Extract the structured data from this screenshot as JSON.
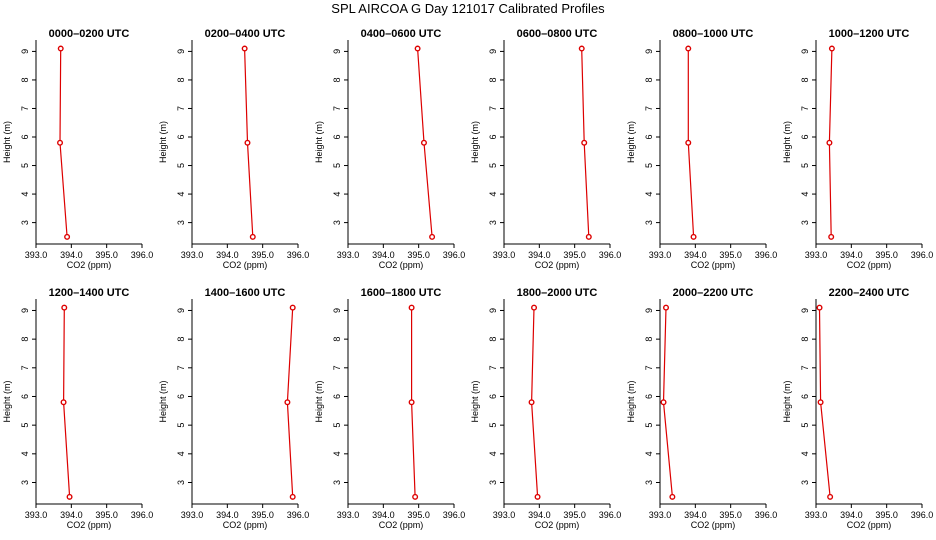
{
  "figure": {
    "title": "SPL AIRCOA G  Day 121017  Calibrated Profiles"
  },
  "chart_data": [
    {
      "type": "line",
      "title": "0000–0200 UTC",
      "xlabel": "CO2 (ppm)",
      "ylabel": "Height (m)",
      "xlim": [
        393,
        396
      ],
      "ylim": [
        2.25,
        9.4
      ],
      "xticks": [
        "393.0",
        "394.0",
        "395.0",
        "396.0"
      ],
      "yticks": [
        "3",
        "4",
        "5",
        "6",
        "7",
        "8",
        "9"
      ],
      "series": [
        {
          "color": "#dd0000",
          "x": [
            393.7,
            393.68,
            393.88
          ],
          "y": [
            9.1,
            5.8,
            2.5
          ]
        }
      ]
    },
    {
      "type": "line",
      "title": "0200–0400 UTC",
      "xlabel": "CO2 (ppm)",
      "ylabel": "Height (m)",
      "xlim": [
        393,
        396
      ],
      "ylim": [
        2.25,
        9.4
      ],
      "xticks": [
        "393.0",
        "394.0",
        "395.0",
        "396.0"
      ],
      "yticks": [
        "3",
        "4",
        "5",
        "6",
        "7",
        "8",
        "9"
      ],
      "series": [
        {
          "color": "#dd0000",
          "x": [
            394.49,
            394.57,
            394.72
          ],
          "y": [
            9.1,
            5.8,
            2.5
          ]
        }
      ]
    },
    {
      "type": "line",
      "title": "0400–0600 UTC",
      "xlabel": "CO2 (ppm)",
      "ylabel": "Height (m)",
      "xlim": [
        393,
        396
      ],
      "ylim": [
        2.25,
        9.4
      ],
      "xticks": [
        "393.0",
        "394.0",
        "395.0",
        "396.0"
      ],
      "yticks": [
        "3",
        "4",
        "5",
        "6",
        "7",
        "8",
        "9"
      ],
      "series": [
        {
          "color": "#dd0000",
          "x": [
            394.97,
            395.15,
            395.38
          ],
          "y": [
            9.1,
            5.8,
            2.5
          ]
        }
      ]
    },
    {
      "type": "line",
      "title": "0600–0800 UTC",
      "xlabel": "CO2 (ppm)",
      "ylabel": "Height (m)",
      "xlim": [
        393,
        396
      ],
      "ylim": [
        2.25,
        9.4
      ],
      "xticks": [
        "393.0",
        "394.0",
        "395.0",
        "396.0"
      ],
      "yticks": [
        "3",
        "4",
        "5",
        "6",
        "7",
        "8",
        "9"
      ],
      "series": [
        {
          "color": "#dd0000",
          "x": [
            395.2,
            395.27,
            395.4
          ],
          "y": [
            9.1,
            5.8,
            2.5
          ]
        }
      ]
    },
    {
      "type": "line",
      "title": "0800–1000 UTC",
      "xlabel": "CO2 (ppm)",
      "ylabel": "Height (m)",
      "xlim": [
        393,
        396
      ],
      "ylim": [
        2.25,
        9.4
      ],
      "xticks": [
        "393.0",
        "394.0",
        "395.0",
        "396.0"
      ],
      "yticks": [
        "3",
        "4",
        "5",
        "6",
        "7",
        "8",
        "9"
      ],
      "series": [
        {
          "color": "#dd0000",
          "x": [
            393.8,
            393.8,
            393.95
          ],
          "y": [
            9.1,
            5.8,
            2.5
          ]
        }
      ]
    },
    {
      "type": "line",
      "title": "1000–1200 UTC",
      "xlabel": "CO2 (ppm)",
      "ylabel": "Height (m)",
      "xlim": [
        393,
        396
      ],
      "ylim": [
        2.25,
        9.4
      ],
      "xticks": [
        "393.0",
        "394.0",
        "395.0",
        "396.0"
      ],
      "yticks": [
        "3",
        "4",
        "5",
        "6",
        "7",
        "8",
        "9"
      ],
      "series": [
        {
          "color": "#dd0000",
          "x": [
            393.45,
            393.38,
            393.43
          ],
          "y": [
            9.1,
            5.8,
            2.5
          ]
        }
      ]
    },
    {
      "type": "line",
      "title": "1200–1400 UTC",
      "xlabel": "CO2 (ppm)",
      "ylabel": "Height (m)",
      "xlim": [
        393,
        396
      ],
      "ylim": [
        2.25,
        9.4
      ],
      "xticks": [
        "393.0",
        "394.0",
        "395.0",
        "396.0"
      ],
      "yticks": [
        "3",
        "4",
        "5",
        "6",
        "7",
        "8",
        "9"
      ],
      "series": [
        {
          "color": "#dd0000",
          "x": [
            393.8,
            393.78,
            393.95
          ],
          "y": [
            9.1,
            5.8,
            2.5
          ]
        }
      ]
    },
    {
      "type": "line",
      "title": "1400–1600 UTC",
      "xlabel": "CO2 (ppm)",
      "ylabel": "Height (m)",
      "xlim": [
        393,
        396
      ],
      "ylim": [
        2.25,
        9.4
      ],
      "xticks": [
        "393.0",
        "394.0",
        "395.0",
        "396.0"
      ],
      "yticks": [
        "3",
        "4",
        "5",
        "6",
        "7",
        "8",
        "9"
      ],
      "series": [
        {
          "color": "#dd0000",
          "x": [
            395.85,
            395.7,
            395.85
          ],
          "y": [
            9.1,
            5.8,
            2.5
          ]
        }
      ]
    },
    {
      "type": "line",
      "title": "1600–1800 UTC",
      "xlabel": "CO2 (ppm)",
      "ylabel": "Height (m)",
      "xlim": [
        393,
        396
      ],
      "ylim": [
        2.25,
        9.4
      ],
      "xticks": [
        "393.0",
        "394.0",
        "395.0",
        "396.0"
      ],
      "yticks": [
        "3",
        "4",
        "5",
        "6",
        "7",
        "8",
        "9"
      ],
      "series": [
        {
          "color": "#dd0000",
          "x": [
            394.8,
            394.8,
            394.9
          ],
          "y": [
            9.1,
            5.8,
            2.5
          ]
        }
      ]
    },
    {
      "type": "line",
      "title": "1800–2000 UTC",
      "xlabel": "CO2 (ppm)",
      "ylabel": "Height (m)",
      "xlim": [
        393,
        396
      ],
      "ylim": [
        2.25,
        9.4
      ],
      "xticks": [
        "393.0",
        "394.0",
        "395.0",
        "396.0"
      ],
      "yticks": [
        "3",
        "4",
        "5",
        "6",
        "7",
        "8",
        "9"
      ],
      "series": [
        {
          "color": "#dd0000",
          "x": [
            393.85,
            393.78,
            393.95
          ],
          "y": [
            9.1,
            5.8,
            2.5
          ]
        }
      ]
    },
    {
      "type": "line",
      "title": "2000–2200 UTC",
      "xlabel": "CO2 (ppm)",
      "ylabel": "Height (m)",
      "xlim": [
        393,
        396
      ],
      "ylim": [
        2.25,
        9.4
      ],
      "xticks": [
        "393.0",
        "394.0",
        "395.0",
        "396.0"
      ],
      "yticks": [
        "3",
        "4",
        "5",
        "6",
        "7",
        "8",
        "9"
      ],
      "series": [
        {
          "color": "#dd0000",
          "x": [
            393.17,
            393.1,
            393.35
          ],
          "y": [
            9.1,
            5.8,
            2.5
          ]
        }
      ]
    },
    {
      "type": "line",
      "title": "2200–2400 UTC",
      "xlabel": "CO2 (ppm)",
      "ylabel": "Height (m)",
      "xlim": [
        393,
        396
      ],
      "ylim": [
        2.25,
        9.4
      ],
      "xticks": [
        "393.0",
        "394.0",
        "395.0",
        "396.0"
      ],
      "yticks": [
        "3",
        "4",
        "5",
        "6",
        "7",
        "8",
        "9"
      ],
      "series": [
        {
          "color": "#dd0000",
          "x": [
            393.1,
            393.13,
            393.4
          ],
          "y": [
            9.1,
            5.8,
            2.5
          ]
        }
      ]
    }
  ]
}
